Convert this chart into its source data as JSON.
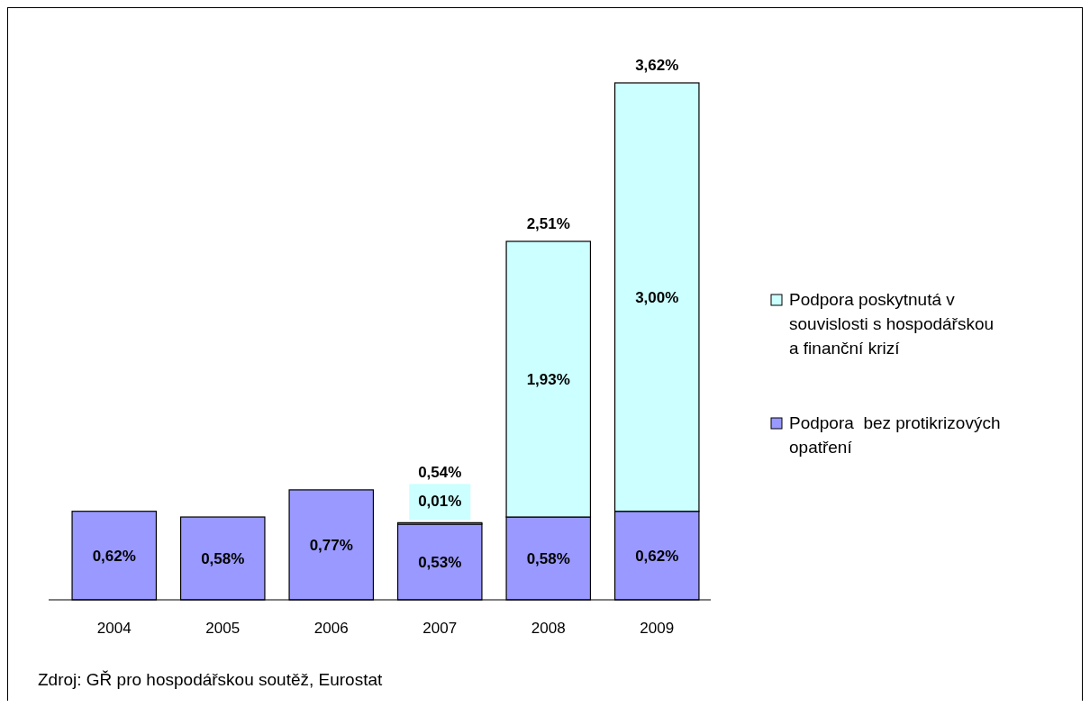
{
  "chart_data": {
    "type": "bar",
    "stacked": true,
    "categories": [
      "2004",
      "2005",
      "2006",
      "2007",
      "2008",
      "2009"
    ],
    "series": [
      {
        "name": "Podpora  bez protikrizových opatření",
        "color": "#9999ff",
        "values": [
          0.62,
          0.58,
          0.77,
          0.53,
          0.58,
          0.62
        ],
        "value_labels": [
          "0,62%",
          "0,58%",
          "0,77%",
          "0,53%",
          "0,58%",
          "0,62%"
        ]
      },
      {
        "name": "Podpora poskytnutá v souvislosti s hospodářskou a finanční krizí",
        "color": "#ccffff",
        "values": [
          null,
          null,
          null,
          0.01,
          1.93,
          3.0
        ],
        "value_labels": [
          null,
          null,
          null,
          "0,01%",
          "1,93%",
          "3,00%"
        ]
      }
    ],
    "totals": [
      null,
      null,
      null,
      "0,54%",
      "2,51%",
      "3,62%"
    ],
    "legend": "right",
    "annotations": [
      "Zdroj: GŘ pro hospodářskou soutěž, Eurostat"
    ]
  }
}
